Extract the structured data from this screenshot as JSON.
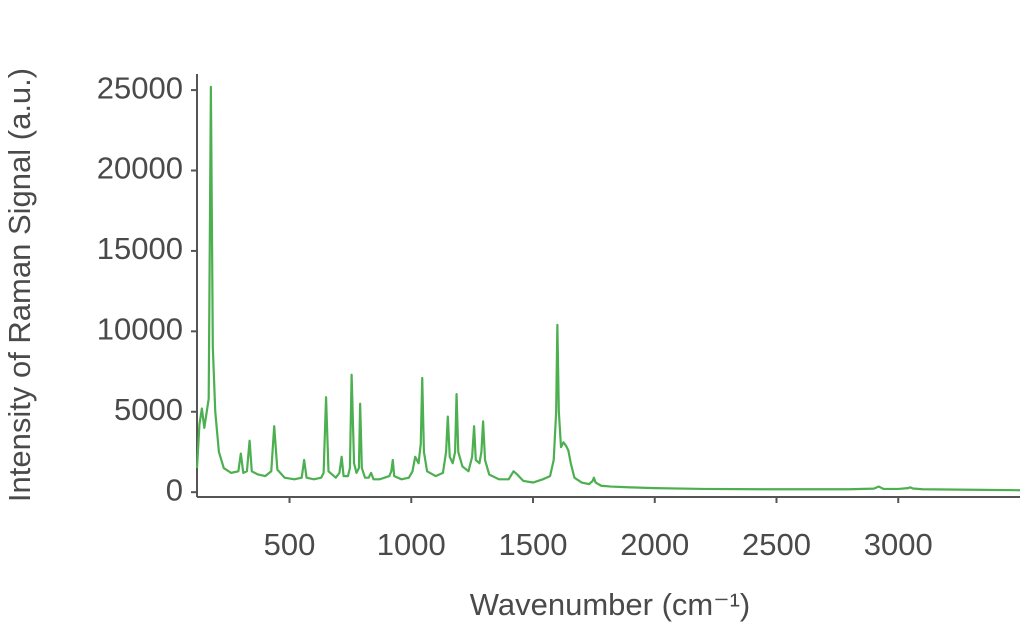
{
  "chart_data": {
    "type": "line",
    "x_label": "Wavenumber (cm⁻¹)",
    "y_label": "Intensity of Raman Signal (a.u.)",
    "xlim": [
      120,
      3500
    ],
    "ylim": [
      -300,
      26000
    ],
    "xticks": [
      500,
      1000,
      1500,
      2000,
      2500,
      3000
    ],
    "yticks": [
      0,
      5000,
      10000,
      15000,
      20000,
      25000
    ],
    "series": [
      {
        "color": "#4caf50",
        "x": [
          120,
          130,
          140,
          150,
          160,
          168,
          177,
          185,
          195,
          210,
          230,
          260,
          290,
          300,
          310,
          325,
          336,
          345,
          370,
          400,
          425,
          437,
          450,
          480,
          520,
          550,
          560,
          570,
          600,
          630,
          640,
          650,
          660,
          690,
          705,
          714,
          722,
          740,
          748,
          755,
          765,
          775,
          785,
          790,
          797,
          810,
          825,
          835,
          845,
          870,
          890,
          910,
          918,
          924,
          930,
          960,
          990,
          1005,
          1016,
          1030,
          1039,
          1045,
          1052,
          1065,
          1100,
          1130,
          1143,
          1150,
          1158,
          1170,
          1180,
          1186,
          1193,
          1210,
          1235,
          1250,
          1258,
          1265,
          1280,
          1288,
          1295,
          1303,
          1320,
          1360,
          1400,
          1420,
          1435,
          1460,
          1500,
          1540,
          1570,
          1585,
          1595,
          1600,
          1606,
          1615,
          1625,
          1635,
          1645,
          1655,
          1670,
          1700,
          1730,
          1745,
          1750,
          1757,
          1780,
          1820,
          1900,
          2000,
          2200,
          2500,
          2800,
          2900,
          2920,
          2940,
          3000,
          3040,
          3050,
          3060,
          3100,
          3300,
          3500
        ],
        "values": [
          1500,
          4200,
          5200,
          4000,
          5000,
          5800,
          25200,
          9000,
          5000,
          2500,
          1500,
          1200,
          1300,
          2400,
          1200,
          1300,
          3200,
          1300,
          1100,
          1000,
          1300,
          4100,
          1400,
          900,
          800,
          900,
          2000,
          900,
          800,
          900,
          1200,
          5900,
          1300,
          900,
          1200,
          2200,
          1000,
          1000,
          1500,
          7300,
          1800,
          1200,
          1500,
          5500,
          1500,
          900,
          900,
          1200,
          800,
          800,
          900,
          1000,
          1300,
          2000,
          1000,
          800,
          900,
          1300,
          2200,
          1800,
          3000,
          7100,
          2500,
          1300,
          1000,
          1200,
          2500,
          4700,
          2200,
          1800,
          2500,
          6100,
          2500,
          1600,
          1300,
          2200,
          4100,
          2000,
          1800,
          2500,
          4400,
          2000,
          1100,
          800,
          800,
          1300,
          1100,
          700,
          600,
          800,
          1000,
          2000,
          5000,
          10400,
          5000,
          2800,
          3100,
          2900,
          2600,
          1800,
          900,
          600,
          500,
          700,
          900,
          600,
          400,
          350,
          300,
          250,
          200,
          180,
          180,
          220,
          350,
          200,
          200,
          250,
          300,
          230,
          180,
          150,
          120
        ]
      }
    ]
  }
}
